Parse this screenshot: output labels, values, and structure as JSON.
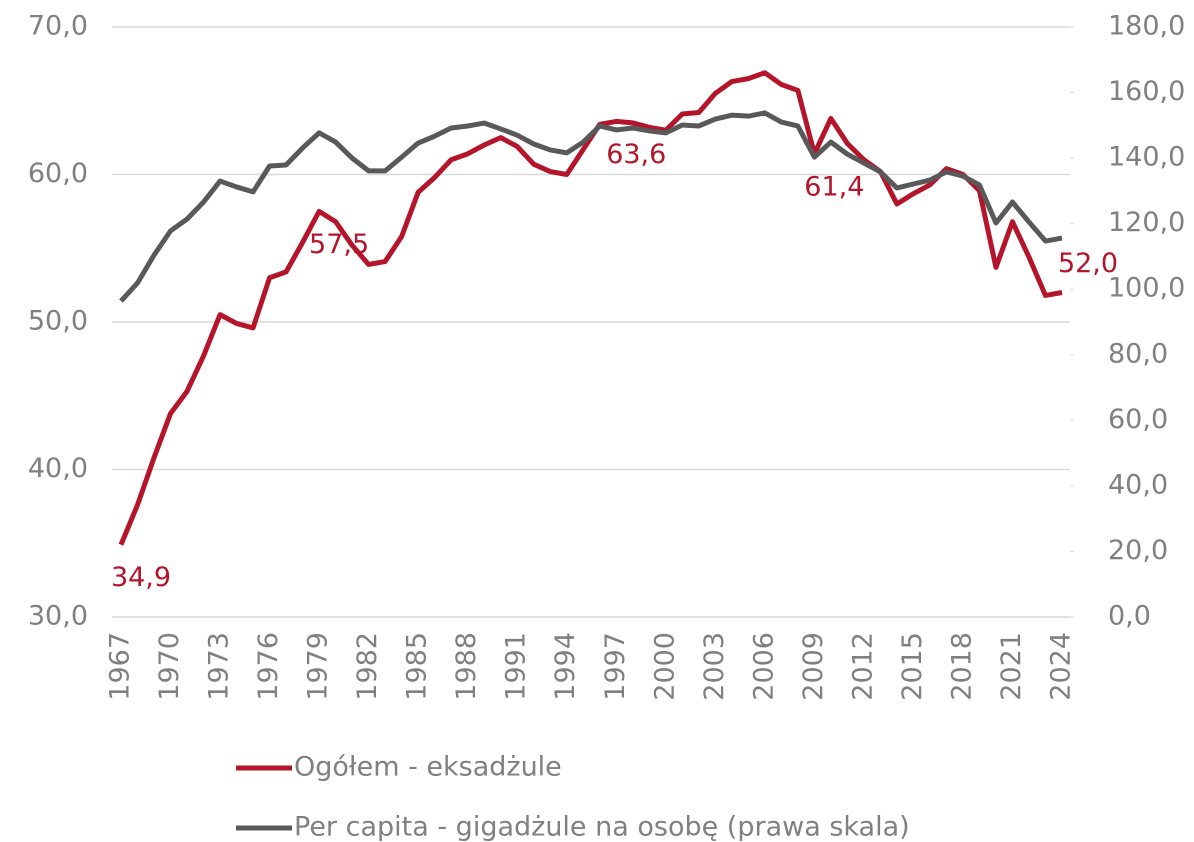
{
  "chart_data": {
    "type": "line",
    "categories": [
      "1967",
      null,
      null,
      "1970",
      null,
      null,
      "1973",
      null,
      null,
      "1976",
      null,
      null,
      "1979",
      null,
      null,
      "1982",
      null,
      null,
      "1985",
      null,
      null,
      "1988",
      null,
      null,
      "1991",
      null,
      null,
      "1994",
      null,
      null,
      "1997",
      null,
      null,
      "2000",
      null,
      null,
      "2003",
      null,
      null,
      "2006",
      null,
      null,
      "2009",
      null,
      null,
      "2012",
      null,
      null,
      "2015",
      null,
      null,
      "2018",
      null,
      null,
      "2021",
      null,
      null,
      "2024"
    ],
    "series": [
      {
        "name": "Ogółem - eksadżule",
        "color": "#b5152b",
        "axis": "y",
        "values": [
          34.9,
          37.6,
          40.8,
          43.8,
          45.3,
          47.7,
          50.5,
          49.9,
          49.6,
          53.0,
          53.4,
          55.4,
          57.5,
          56.8,
          55.2,
          53.9,
          54.1,
          55.8,
          58.8,
          59.8,
          61.0,
          61.4,
          62.0,
          62.5,
          61.9,
          60.7,
          60.2,
          60.0,
          61.7,
          63.4,
          63.6,
          63.5,
          63.2,
          63.0,
          64.1,
          64.2,
          65.5,
          66.3,
          66.5,
          66.9,
          66.1,
          65.7,
          61.4,
          63.8,
          62.1,
          61.0,
          60.2,
          58.0,
          58.7,
          59.3,
          60.4,
          60.0,
          58.9,
          53.7,
          56.8,
          54.4,
          51.8,
          52.0
        ],
        "value_labels": [
          "34,9",
          null,
          null,
          null,
          null,
          null,
          null,
          null,
          null,
          null,
          null,
          null,
          "57,5",
          null,
          null,
          null,
          null,
          null,
          null,
          null,
          null,
          null,
          null,
          null,
          null,
          null,
          null,
          null,
          null,
          null,
          "63,6",
          null,
          null,
          null,
          null,
          null,
          null,
          null,
          null,
          null,
          null,
          null,
          "61,4",
          null,
          null,
          null,
          null,
          null,
          null,
          null,
          null,
          null,
          null,
          null,
          null,
          null,
          null,
          "52,0"
        ]
      },
      {
        "name": "Per capita - gigadżule na osobę (prawa skala)",
        "color": "#595959",
        "axis": "y2",
        "values": [
          96.4,
          101.9,
          110.4,
          117.8,
          121.4,
          126.6,
          133.0,
          131.2,
          129.7,
          137.6,
          137.9,
          143.1,
          147.7,
          144.9,
          140.0,
          136.1,
          136.1,
          140.3,
          144.6,
          146.7,
          149.2,
          149.8,
          150.7,
          148.9,
          147.0,
          144.3,
          142.5,
          141.6,
          144.9,
          149.8,
          148.6,
          149.2,
          148.3,
          147.7,
          150.1,
          149.8,
          151.9,
          153.1,
          152.8,
          153.8,
          151.0,
          149.8,
          140.3,
          144.9,
          141.2,
          138.5,
          135.8,
          130.9,
          132.1,
          133.3,
          135.8,
          134.5,
          131.8,
          120.2,
          126.6,
          120.5,
          114.7,
          115.6
        ]
      }
    ],
    "ylim": [
      30,
      70
    ],
    "yticks": [
      {
        "value": 30,
        "label": "30,0"
      },
      {
        "value": 40,
        "label": "40,0"
      },
      {
        "value": 50,
        "label": "50,0"
      },
      {
        "value": 60,
        "label": "60,0"
      },
      {
        "value": 70,
        "label": "70,0"
      }
    ],
    "y2lim": [
      0,
      180
    ],
    "y2ticks": [
      {
        "value": 0,
        "label": "0,0"
      },
      {
        "value": 20,
        "label": "20,0"
      },
      {
        "value": 40,
        "label": "40,0"
      },
      {
        "value": 60,
        "label": "60,0"
      },
      {
        "value": 80,
        "label": "80,0"
      },
      {
        "value": 100,
        "label": "100,0"
      },
      {
        "value": 120,
        "label": "120,0"
      },
      {
        "value": 140,
        "label": "140,0"
      },
      {
        "value": 160,
        "label": "160,0"
      },
      {
        "value": 180,
        "label": "180,0"
      }
    ],
    "grid": true,
    "legend": "bottom"
  }
}
